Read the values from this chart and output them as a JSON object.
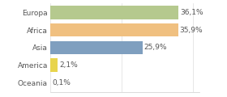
{
  "categories": [
    "Europa",
    "Africa",
    "Asia",
    "America",
    "Oceania"
  ],
  "values": [
    36.1,
    35.9,
    25.9,
    2.1,
    0.1
  ],
  "labels": [
    "36,1%",
    "35,9%",
    "25,9%",
    "2,1%",
    "0,1%"
  ],
  "bar_colors": [
    "#b5c98e",
    "#f0c080",
    "#7f9fbf",
    "#e8d44d",
    "#a0c0a0"
  ],
  "background_color": "#ffffff",
  "xlim": [
    0,
    42
  ],
  "bar_height": 0.75,
  "label_fontsize": 6.5,
  "value_fontsize": 6.5,
  "text_color": "#555555"
}
